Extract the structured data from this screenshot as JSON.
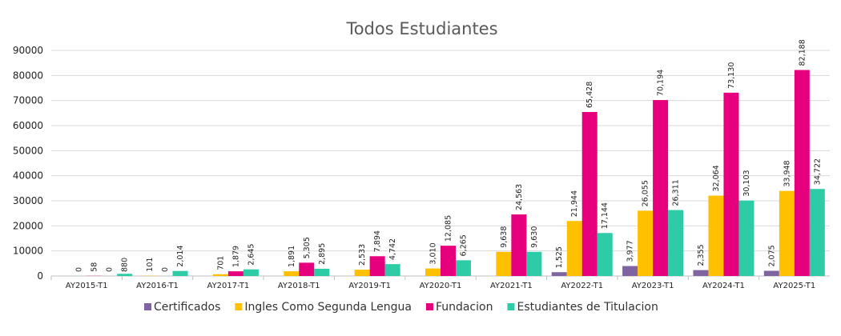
{
  "chart_data": {
    "type": "bar",
    "title": "Todos Estudiantes",
    "categories": [
      "AY2015-T1",
      "AY2016-T1",
      "AY2017-T1",
      "AY2018-T1",
      "AY2019-T1",
      "AY2020-T1",
      "AY2021-T1",
      "AY2022-T1",
      "AY2023-T1",
      "AY2024-T1",
      "AY2025-T1"
    ],
    "ylim": [
      0,
      90000
    ],
    "yticks": [
      0,
      10000,
      20000,
      30000,
      40000,
      50000,
      60000,
      70000,
      80000,
      90000
    ],
    "grid": true,
    "legend_position": "bottom",
    "series": [
      {
        "name": "Certificados",
        "color": "#8064a2",
        "values": [
          null,
          null,
          null,
          null,
          null,
          null,
          null,
          1525,
          3977,
          2355,
          2075
        ],
        "labels": [
          "",
          "",
          "",
          "",
          "",
          "",
          "",
          "1,525",
          "3,977",
          "2,355",
          "2,075"
        ]
      },
      {
        "name": "Ingles Como Segunda Lengua",
        "color": "#ffc000",
        "values": [
          0,
          101,
          701,
          1891,
          2533,
          3010,
          9638,
          21944,
          26055,
          32064,
          33948
        ],
        "labels": [
          "0",
          "101",
          "701",
          "1,891",
          "2,533",
          "3,010",
          "9,638",
          "21,944",
          "26,055",
          "32,064",
          "33,948"
        ]
      },
      {
        "name": "Fundacion",
        "color": "#e6007e",
        "values": [
          58,
          0,
          1879,
          5305,
          7894,
          12085,
          24563,
          65428,
          70194,
          73130,
          82188
        ],
        "labels": [
          "58",
          "0",
          "1,879",
          "5,305",
          "7,894",
          "12,085",
          "24,563",
          "65,428",
          "70,194",
          "73,130",
          "82,188"
        ]
      },
      {
        "name": "Estudiantes de Titulacion",
        "color": "#2ecca6",
        "values": [
          0,
          2014,
          2645,
          2895,
          4742,
          6265,
          9630,
          17144,
          26311,
          30103,
          34722
        ],
        "labels": [
          "0",
          "2,014",
          "2,645",
          "2,895",
          "4,742",
          "6,265",
          "9,630",
          "17,144",
          "26,311",
          "30,103",
          "34,722"
        ]
      }
    ],
    "extra_labels": [
      "880"
    ]
  }
}
